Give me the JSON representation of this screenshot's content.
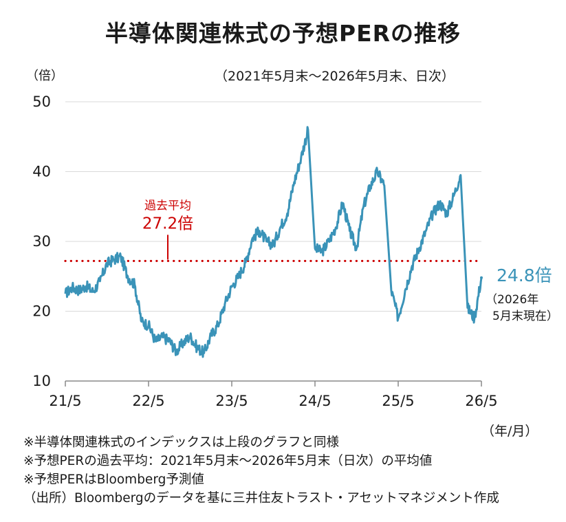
{
  "title": "半導体関連株式の予想PERの推移",
  "y_unit": "（倍）",
  "period": "（2021年5月末〜2026年5月末、日次）",
  "x_unit": "（年/月）",
  "notes": [
    "※半導体関連株式のインデックスは上段のグラフと同様",
    "※予想PERの過去平均：2021年5月末〜2026年5月末（日次）の平均値",
    "※予想PERはBloomberg予測値",
    "（出所）Bloombergのデータを基に三井住友トラスト・アセットマネジメント作成"
  ],
  "colors": {
    "line": "#3a93b8",
    "average": "#cc0000",
    "axis": "#888888",
    "grid": "#d9d9d9"
  },
  "chart_data": {
    "type": "line",
    "ylim": [
      10,
      50
    ],
    "yticks": [
      "10",
      "20",
      "30",
      "40",
      "50"
    ],
    "xticks": [
      "21/5",
      "22/5",
      "23/5",
      "24/5",
      "25/5",
      "26/5"
    ],
    "x_range_months": [
      "2021-05",
      "2026-05"
    ],
    "grid": true,
    "average": {
      "value": 27.2,
      "label_top": "過去平均",
      "label_bottom": "27.2倍"
    },
    "end_label": {
      "value": "24.8倍",
      "note_line1": "（2026年",
      "note_line2": "5月末現在）"
    },
    "series": [
      {
        "points": [
          [
            "2021-05",
            22.5
          ],
          [
            "2021-06",
            23.4
          ],
          [
            "2021-07",
            23.0
          ],
          [
            "2021-08",
            23.6
          ],
          [
            "2021-09",
            22.8
          ],
          [
            "2021-10",
            24.3
          ],
          [
            "2021-11",
            26.8
          ],
          [
            "2021-12",
            27.4
          ],
          [
            "2022-01",
            27.8
          ],
          [
            "2022-02",
            25.0
          ],
          [
            "2022-03",
            23.8
          ],
          [
            "2022-04",
            18.5
          ],
          [
            "2022-05",
            18.0
          ],
          [
            "2022-06",
            15.7
          ],
          [
            "2022-07",
            16.3
          ],
          [
            "2022-08",
            15.8
          ],
          [
            "2022-09",
            14.2
          ],
          [
            "2022-10",
            15.5
          ],
          [
            "2022-11",
            16.4
          ],
          [
            "2022-12",
            14.8
          ],
          [
            "2023-01",
            14.0
          ],
          [
            "2023-02",
            16.5
          ],
          [
            "2023-03",
            18.0
          ],
          [
            "2023-04",
            21.0
          ],
          [
            "2023-05",
            23.5
          ],
          [
            "2023-06",
            25.0
          ],
          [
            "2023-07",
            27.0
          ],
          [
            "2023-08",
            30.5
          ],
          [
            "2023-09",
            31.5
          ],
          [
            "2023-10",
            30.0
          ],
          [
            "2023-11",
            29.5
          ],
          [
            "2023-12",
            32.0
          ],
          [
            "2024-01",
            34.0
          ],
          [
            "2024-02",
            38.5
          ],
          [
            "2024-03",
            42.0
          ],
          [
            "2024-04",
            46.0
          ],
          [
            "2024-05",
            29.0
          ],
          [
            "2024-06",
            28.5
          ],
          [
            "2024-07",
            30.0
          ],
          [
            "2024-08",
            32.0
          ],
          [
            "2024-09",
            35.5
          ],
          [
            "2024-10",
            31.5
          ],
          [
            "2024-11",
            29.0
          ],
          [
            "2024-12",
            35.0
          ],
          [
            "2025-01",
            38.0
          ],
          [
            "2025-02",
            40.0
          ],
          [
            "2025-03",
            38.0
          ],
          [
            "2025-04",
            23.0
          ],
          [
            "2025-05",
            19.0
          ],
          [
            "2025-06",
            23.0
          ],
          [
            "2025-07",
            26.5
          ],
          [
            "2025-08",
            29.0
          ],
          [
            "2025-09",
            31.5
          ],
          [
            "2025-10",
            34.0
          ],
          [
            "2025-11",
            35.5
          ],
          [
            "2025-12",
            34.0
          ],
          [
            "2026-01",
            36.5
          ],
          [
            "2026-02",
            39.5
          ],
          [
            "2026-03",
            20.5
          ],
          [
            "2026-04",
            19.0
          ],
          [
            "2026-05",
            24.8
          ]
        ]
      }
    ]
  }
}
